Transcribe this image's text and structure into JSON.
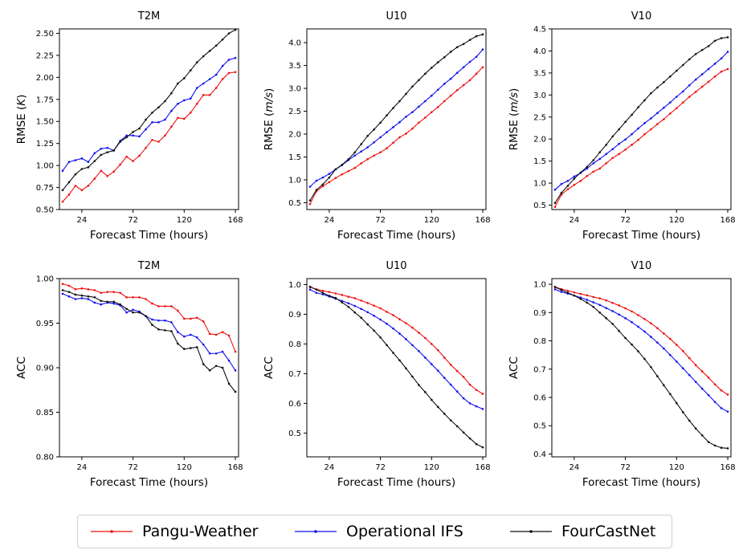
{
  "colors": {
    "Pangu-Weather": "#ee1111",
    "Operational IFS": "#1111ee",
    "FourCastNet": "#111111"
  },
  "legend": {
    "items": [
      {
        "label": "Pangu-Weather",
        "color": "#ee1111"
      },
      {
        "label": "Operational IFS",
        "color": "#1111ee"
      },
      {
        "label": "FourCastNet",
        "color": "#111111"
      }
    ]
  },
  "chart_data": [
    {
      "type": "line",
      "title": "T2M",
      "xlabel": "Forecast Time (hours)",
      "ylabel": "RMSE (K)",
      "ylabel_main": "RMSE (",
      "ylabel_unit": "K",
      "ylabel_end": ")",
      "x": [
        6,
        12,
        18,
        24,
        30,
        36,
        42,
        48,
        54,
        60,
        66,
        72,
        78,
        84,
        90,
        96,
        102,
        108,
        114,
        120,
        126,
        132,
        138,
        144,
        150,
        156,
        162,
        168
      ],
      "x_ticks": [
        24,
        72,
        120,
        168
      ],
      "ylim": [
        0.5,
        2.55
      ],
      "y_ticks": [
        "0.50",
        "0.75",
        "1.00",
        "1.25",
        "1.50",
        "1.75",
        "2.00",
        "2.25",
        "2.50"
      ],
      "series": [
        {
          "name": "Pangu-Weather",
          "values": [
            0.59,
            0.67,
            0.77,
            0.72,
            0.77,
            0.85,
            0.94,
            0.88,
            0.93,
            1.01,
            1.1,
            1.05,
            1.11,
            1.2,
            1.29,
            1.27,
            1.34,
            1.44,
            1.54,
            1.53,
            1.6,
            1.7,
            1.8,
            1.8,
            1.88,
            1.98,
            2.05,
            2.06
          ]
        },
        {
          "name": "Operational IFS",
          "values": [
            0.94,
            1.04,
            1.06,
            1.08,
            1.04,
            1.14,
            1.19,
            1.2,
            1.17,
            1.28,
            1.34,
            1.34,
            1.33,
            1.41,
            1.49,
            1.49,
            1.52,
            1.62,
            1.7,
            1.74,
            1.76,
            1.88,
            1.93,
            1.98,
            2.03,
            2.13,
            2.2,
            2.22
          ]
        },
        {
          "name": "FourCastNet",
          "values": [
            0.72,
            0.81,
            0.9,
            0.96,
            0.98,
            1.05,
            1.12,
            1.15,
            1.17,
            1.27,
            1.32,
            1.38,
            1.42,
            1.52,
            1.6,
            1.66,
            1.73,
            1.82,
            1.93,
            1.99,
            2.08,
            2.17,
            2.24,
            2.3,
            2.36,
            2.43,
            2.5,
            2.54
          ]
        }
      ]
    },
    {
      "type": "line",
      "title": "U10",
      "xlabel": "Forecast Time (hours)",
      "ylabel": "RMSE (m/s)",
      "ylabel_main": "RMSE (",
      "ylabel_unit": "m/s",
      "ylabel_end": ")",
      "x": [
        6,
        12,
        18,
        24,
        30,
        36,
        42,
        48,
        54,
        60,
        66,
        72,
        78,
        84,
        90,
        96,
        102,
        108,
        114,
        120,
        126,
        132,
        138,
        144,
        150,
        156,
        162,
        168
      ],
      "x_ticks": [
        24,
        72,
        120,
        168
      ],
      "ylim": [
        0.35,
        4.3
      ],
      "y_ticks": [
        "0.5",
        "1.0",
        "1.5",
        "2.0",
        "2.5",
        "3.0",
        "3.5",
        "4.0"
      ],
      "series": [
        {
          "name": "Pangu-Weather",
          "values": [
            0.47,
            0.75,
            0.86,
            0.95,
            1.04,
            1.12,
            1.19,
            1.26,
            1.36,
            1.45,
            1.53,
            1.6,
            1.69,
            1.81,
            1.93,
            2.01,
            2.12,
            2.25,
            2.36,
            2.48,
            2.59,
            2.72,
            2.84,
            2.96,
            3.07,
            3.18,
            3.32,
            3.46
          ]
        },
        {
          "name": "Operational IFS",
          "values": [
            0.85,
            0.98,
            1.05,
            1.13,
            1.23,
            1.32,
            1.43,
            1.53,
            1.62,
            1.71,
            1.82,
            1.93,
            2.04,
            2.15,
            2.26,
            2.38,
            2.48,
            2.6,
            2.72,
            2.84,
            2.97,
            3.1,
            3.21,
            3.34,
            3.46,
            3.58,
            3.69,
            3.85
          ]
        },
        {
          "name": "FourCastNet",
          "values": [
            0.55,
            0.78,
            0.9,
            1.05,
            1.23,
            1.33,
            1.45,
            1.6,
            1.78,
            1.96,
            2.1,
            2.25,
            2.41,
            2.57,
            2.72,
            2.88,
            3.04,
            3.18,
            3.32,
            3.45,
            3.57,
            3.68,
            3.8,
            3.9,
            3.97,
            4.06,
            4.14,
            4.18
          ]
        }
      ]
    },
    {
      "type": "line",
      "title": "V10",
      "xlabel": "Forecast Time (hours)",
      "ylabel": "RMSE (m/s)",
      "ylabel_main": "RMSE (",
      "ylabel_unit": "m/s",
      "ylabel_end": ")",
      "x": [
        6,
        12,
        18,
        24,
        30,
        36,
        42,
        48,
        54,
        60,
        66,
        72,
        78,
        84,
        90,
        96,
        102,
        108,
        114,
        120,
        126,
        132,
        138,
        144,
        150,
        156,
        162,
        168
      ],
      "x_ticks": [
        24,
        72,
        120,
        168
      ],
      "ylim": [
        0.4,
        4.5
      ],
      "y_ticks": [
        "0.5",
        "1.0",
        "1.5",
        "2.0",
        "2.5",
        "3.0",
        "3.5",
        "4.0",
        "4.5"
      ],
      "series": [
        {
          "name": "Pangu-Weather",
          "values": [
            0.46,
            0.74,
            0.86,
            0.96,
            1.05,
            1.16,
            1.26,
            1.33,
            1.45,
            1.57,
            1.66,
            1.76,
            1.87,
            1.98,
            2.11,
            2.22,
            2.34,
            2.45,
            2.58,
            2.7,
            2.83,
            2.96,
            3.07,
            3.19,
            3.3,
            3.42,
            3.53,
            3.59
          ]
        },
        {
          "name": "Operational IFS",
          "values": [
            0.85,
            0.98,
            1.05,
            1.15,
            1.23,
            1.33,
            1.45,
            1.55,
            1.66,
            1.77,
            1.89,
            1.99,
            2.11,
            2.24,
            2.36,
            2.47,
            2.59,
            2.71,
            2.83,
            2.96,
            3.08,
            3.22,
            3.35,
            3.47,
            3.59,
            3.71,
            3.83,
            3.98
          ]
        },
        {
          "name": "FourCastNet",
          "values": [
            0.55,
            0.78,
            0.94,
            1.1,
            1.24,
            1.37,
            1.52,
            1.7,
            1.87,
            2.06,
            2.22,
            2.39,
            2.55,
            2.72,
            2.88,
            3.04,
            3.17,
            3.29,
            3.42,
            3.55,
            3.68,
            3.81,
            3.93,
            4.02,
            4.11,
            4.23,
            4.29,
            4.31
          ]
        }
      ]
    },
    {
      "type": "line",
      "title": "T2M",
      "xlabel": "Forecast Time (hours)",
      "ylabel": "ACC",
      "x": [
        6,
        12,
        18,
        24,
        30,
        36,
        42,
        48,
        54,
        60,
        66,
        72,
        78,
        84,
        90,
        96,
        102,
        108,
        114,
        120,
        126,
        132,
        138,
        144,
        150,
        156,
        162,
        168
      ],
      "x_ticks": [
        24,
        72,
        120,
        168
      ],
      "ylim": [
        0.8,
        1.0
      ],
      "y_ticks": [
        "0.80",
        "0.85",
        "0.90",
        "0.95",
        "1.00"
      ],
      "series": [
        {
          "name": "Pangu-Weather",
          "values": [
            0.994,
            0.992,
            0.988,
            0.989,
            0.988,
            0.987,
            0.984,
            0.985,
            0.985,
            0.984,
            0.979,
            0.979,
            0.979,
            0.977,
            0.972,
            0.969,
            0.969,
            0.969,
            0.964,
            0.955,
            0.955,
            0.956,
            0.952,
            0.938,
            0.937,
            0.94,
            0.936,
            0.918
          ]
        },
        {
          "name": "Operational IFS",
          "values": [
            0.983,
            0.98,
            0.977,
            0.978,
            0.977,
            0.973,
            0.971,
            0.973,
            0.972,
            0.97,
            0.962,
            0.965,
            0.963,
            0.958,
            0.954,
            0.953,
            0.953,
            0.951,
            0.94,
            0.935,
            0.937,
            0.934,
            0.926,
            0.916,
            0.916,
            0.918,
            0.908,
            0.897
          ]
        },
        {
          "name": "FourCastNet",
          "values": [
            0.987,
            0.985,
            0.982,
            0.981,
            0.98,
            0.979,
            0.975,
            0.974,
            0.974,
            0.971,
            0.966,
            0.962,
            0.962,
            0.958,
            0.948,
            0.943,
            0.942,
            0.941,
            0.927,
            0.921,
            0.922,
            0.923,
            0.904,
            0.897,
            0.902,
            0.9,
            0.882,
            0.873
          ]
        }
      ]
    },
    {
      "type": "line",
      "title": "U10",
      "xlabel": "Forecast Time (hours)",
      "ylabel": "ACC",
      "x": [
        6,
        12,
        18,
        24,
        30,
        36,
        42,
        48,
        54,
        60,
        66,
        72,
        78,
        84,
        90,
        96,
        102,
        108,
        114,
        120,
        126,
        132,
        138,
        144,
        150,
        156,
        162,
        168
      ],
      "x_ticks": [
        24,
        72,
        120,
        168
      ],
      "ylim": [
        0.42,
        1.02
      ],
      "y_ticks": [
        "0.5",
        "0.6",
        "0.7",
        "0.8",
        "0.9",
        "1.0"
      ],
      "series": [
        {
          "name": "Pangu-Weather",
          "values": [
            0.991,
            0.984,
            0.979,
            0.975,
            0.97,
            0.965,
            0.959,
            0.954,
            0.946,
            0.938,
            0.929,
            0.92,
            0.908,
            0.897,
            0.883,
            0.87,
            0.855,
            0.838,
            0.82,
            0.8,
            0.779,
            0.754,
            0.73,
            0.709,
            0.689,
            0.663,
            0.645,
            0.632
          ]
        },
        {
          "name": "Operational IFS",
          "values": [
            0.983,
            0.972,
            0.967,
            0.96,
            0.952,
            0.945,
            0.937,
            0.928,
            0.918,
            0.907,
            0.895,
            0.882,
            0.868,
            0.852,
            0.835,
            0.816,
            0.796,
            0.776,
            0.754,
            0.732,
            0.71,
            0.686,
            0.663,
            0.64,
            0.617,
            0.6,
            0.59,
            0.581
          ]
        },
        {
          "name": "FourCastNet",
          "values": [
            0.993,
            0.983,
            0.972,
            0.962,
            0.955,
            0.94,
            0.925,
            0.906,
            0.888,
            0.866,
            0.845,
            0.822,
            0.796,
            0.77,
            0.745,
            0.718,
            0.69,
            0.662,
            0.638,
            0.612,
            0.588,
            0.565,
            0.543,
            0.523,
            0.502,
            0.482,
            0.463,
            0.452
          ]
        }
      ]
    },
    {
      "type": "line",
      "title": "V10",
      "xlabel": "Forecast Time (hours)",
      "ylabel": "ACC",
      "x": [
        6,
        12,
        18,
        24,
        30,
        36,
        42,
        48,
        54,
        60,
        66,
        72,
        78,
        84,
        90,
        96,
        102,
        108,
        114,
        120,
        126,
        132,
        138,
        144,
        150,
        156,
        162,
        168
      ],
      "x_ticks": [
        24,
        72,
        120,
        168
      ],
      "ylim": [
        0.39,
        1.02
      ],
      "y_ticks": [
        "0.4",
        "0.5",
        "0.6",
        "0.7",
        "0.8",
        "0.9",
        "1.0"
      ],
      "series": [
        {
          "name": "Pangu-Weather",
          "values": [
            0.991,
            0.983,
            0.977,
            0.971,
            0.966,
            0.961,
            0.955,
            0.95,
            0.943,
            0.934,
            0.925,
            0.915,
            0.904,
            0.891,
            0.877,
            0.862,
            0.845,
            0.826,
            0.807,
            0.786,
            0.764,
            0.739,
            0.714,
            0.692,
            0.67,
            0.646,
            0.625,
            0.61
          ]
        },
        {
          "name": "Operational IFS",
          "values": [
            0.982,
            0.973,
            0.967,
            0.96,
            0.953,
            0.945,
            0.936,
            0.927,
            0.916,
            0.905,
            0.893,
            0.88,
            0.866,
            0.85,
            0.833,
            0.814,
            0.794,
            0.773,
            0.75,
            0.727,
            0.703,
            0.679,
            0.655,
            0.631,
            0.608,
            0.584,
            0.562,
            0.55
          ]
        },
        {
          "name": "FourCastNet",
          "values": [
            0.99,
            0.98,
            0.97,
            0.96,
            0.948,
            0.935,
            0.92,
            0.9,
            0.88,
            0.86,
            0.835,
            0.81,
            0.787,
            0.763,
            0.736,
            0.707,
            0.675,
            0.643,
            0.612,
            0.58,
            0.548,
            0.518,
            0.49,
            0.466,
            0.442,
            0.43,
            0.422,
            0.42
          ]
        }
      ]
    }
  ]
}
